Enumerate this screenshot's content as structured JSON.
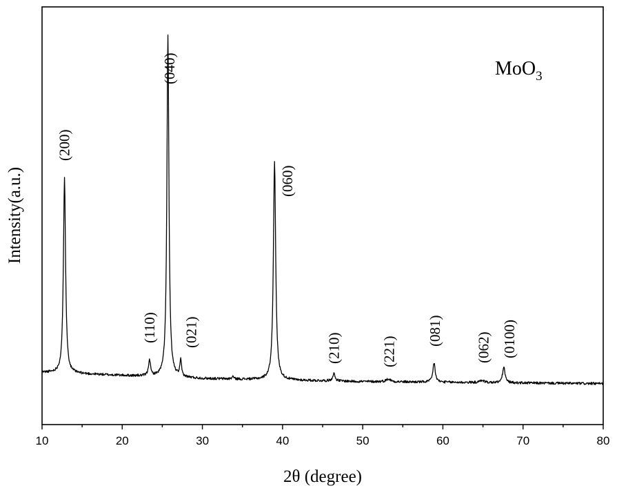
{
  "chart_data": {
    "type": "line",
    "title": "",
    "sample_label": {
      "base": "MoO",
      "subscript": "3"
    },
    "xlabel": "2θ (degree)",
    "ylabel": "Intensity(a.u.)",
    "xlim": [
      10,
      80
    ],
    "ylim": [
      0,
      100
    ],
    "x_ticks": [
      10,
      20,
      30,
      40,
      50,
      60,
      70,
      80
    ],
    "x_tick_labels": [
      "10",
      "20",
      "30",
      "40",
      "50",
      "60",
      "70",
      "80"
    ],
    "y_ticks_labeled": false,
    "grid": false,
    "legend": "none",
    "line_color": "#000000",
    "series": [
      {
        "peaks": [
          {
            "x": 12.8,
            "y": 59.3
          },
          {
            "x": 23.4,
            "y": 15.5
          },
          {
            "x": 25.7,
            "y": 93.1
          },
          {
            "x": 27.3,
            "y": 15.0
          },
          {
            "x": 33.8,
            "y": 11.5
          },
          {
            "x": 39.0,
            "y": 63.2
          },
          {
            "x": 46.4,
            "y": 12.2
          },
          {
            "x": 53.2,
            "y": 10.9
          },
          {
            "x": 58.9,
            "y": 14.8
          },
          {
            "x": 64.9,
            "y": 10.6
          },
          {
            "x": 67.6,
            "y": 13.8
          }
        ],
        "baseline": [
          {
            "x": 10,
            "y": 12.5
          },
          {
            "x": 30,
            "y": 11.0
          },
          {
            "x": 50,
            "y": 10.3
          },
          {
            "x": 80,
            "y": 9.8
          }
        ]
      }
    ],
    "annotations": [
      {
        "text": "(200)",
        "x": 12.8
      },
      {
        "text": "(110)",
        "x": 23.4
      },
      {
        "text": "(040)",
        "x": 25.9
      },
      {
        "text": "(021)",
        "x": 28.6
      },
      {
        "text": "(060)",
        "x": 40.6
      },
      {
        "text": "(210)",
        "x": 46.4
      },
      {
        "text": "(221)",
        "x": 53.3
      },
      {
        "text": "(081)",
        "x": 59.0
      },
      {
        "text": "(062)",
        "x": 65.1
      },
      {
        "text": "(0100)",
        "x": 68.3
      }
    ]
  }
}
